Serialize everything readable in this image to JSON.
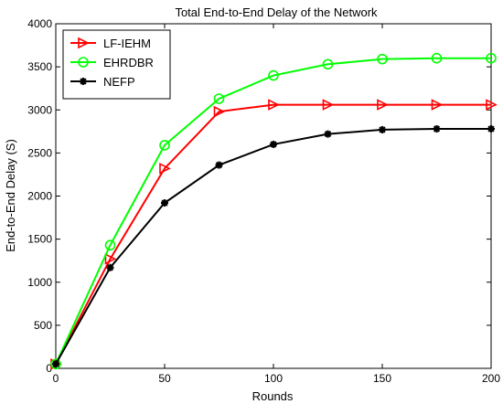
{
  "chart_data": {
    "type": "line",
    "title": "Total End-to-End Delay of the Network",
    "xlabel": "Rounds",
    "ylabel": "End-to-End Delay (S)",
    "xlim": [
      0,
      200
    ],
    "ylim": [
      0,
      4000
    ],
    "xticks": [
      0,
      50,
      100,
      150,
      200
    ],
    "yticks": [
      0,
      500,
      1000,
      1500,
      2000,
      2500,
      3000,
      3500,
      4000
    ],
    "grid": false,
    "legend_position": "top-left",
    "x": [
      0,
      25,
      50,
      75,
      100,
      125,
      150,
      175,
      200
    ],
    "series": [
      {
        "name": "LF-IEHM",
        "color": "#ff0000",
        "marker": "triangle-right",
        "values": [
          50,
          1270,
          2320,
          2980,
          3060,
          3060,
          3060,
          3060,
          3060
        ]
      },
      {
        "name": "EHRDBR",
        "color": "#00ff00",
        "marker": "circle",
        "values": [
          50,
          1430,
          2590,
          3130,
          3400,
          3530,
          3590,
          3600,
          3600
        ]
      },
      {
        "name": "NEFP",
        "color": "#000000",
        "marker": "star",
        "values": [
          50,
          1170,
          1920,
          2360,
          2600,
          2720,
          2770,
          2780,
          2780
        ]
      }
    ]
  }
}
